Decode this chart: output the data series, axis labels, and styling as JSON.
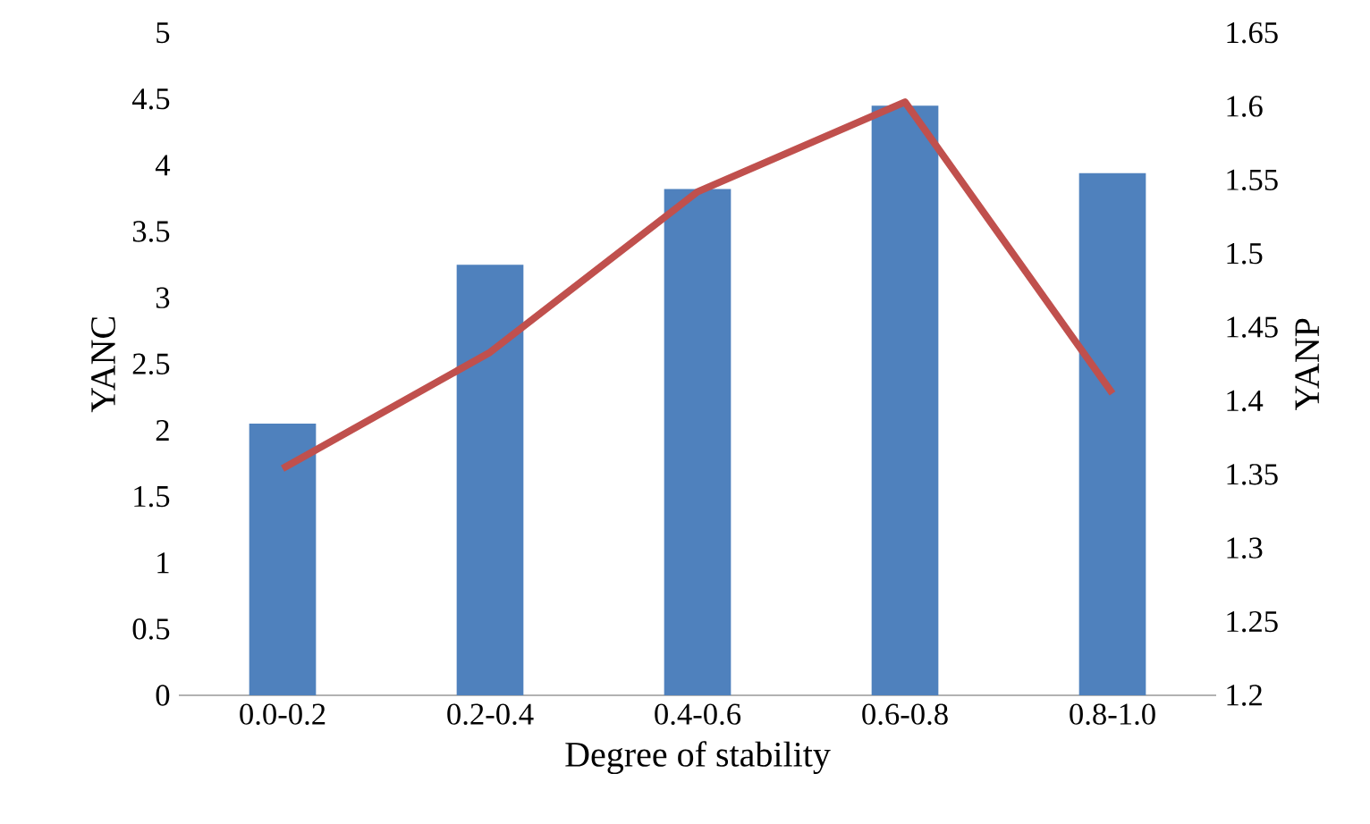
{
  "chart_data": {
    "type": "bar",
    "xlabel": "Degree of stability",
    "ylabel": "YANC",
    "y2label": "YANP",
    "categories": [
      "0.0-0.2",
      "0.2-0.4",
      "0.4-0.6",
      "0.6-0.8",
      "0.8-1.0"
    ],
    "series": [
      {
        "color": "#4f81bd",
        "values": [
          2.05,
          3.25,
          3.82,
          4.45,
          3.94
        ]
      },
      {
        "type": "line",
        "axis": "y2",
        "color": "#c0504d",
        "values": [
          1.354,
          1.433,
          1.542,
          1.603,
          1.405
        ]
      }
    ],
    "ylim": [
      0,
      5
    ],
    "yticks": [
      0,
      0.5,
      1,
      1.5,
      2,
      2.5,
      3,
      3.5,
      4,
      4.5,
      5
    ],
    "y2lim": [
      1.2,
      1.65
    ],
    "y2ticks": [
      1.2,
      1.25,
      1.3,
      1.35,
      1.4,
      1.45,
      1.5,
      1.55,
      1.6,
      1.65
    ]
  }
}
